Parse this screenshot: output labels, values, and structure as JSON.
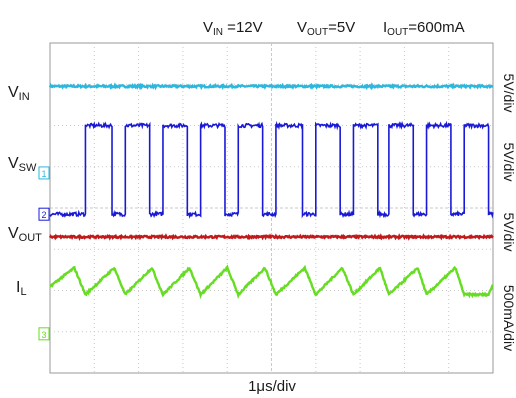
{
  "chart_data": {
    "type": "line",
    "header": {
      "vin": {
        "main": "V",
        "sub": "IN",
        "rest": " =12V"
      },
      "vout": {
        "main": "V",
        "sub": "OUT",
        "rest": "=5V"
      },
      "iout": {
        "main": "I",
        "sub": "OUT",
        "rest": "=600mA"
      }
    },
    "xlabel": "1μs/div",
    "xlim": [
      0,
      10
    ],
    "grid": true,
    "series": [
      {
        "name_main": "V",
        "name_sub": "IN",
        "scale": "5V/div",
        "color": "#2ab7e0",
        "shape": "dc",
        "level_div": 6.95
      },
      {
        "name_main": "V",
        "name_sub": "SW",
        "scale": "5V/div",
        "color": "#1a1ad6",
        "shape": "square",
        "high_div": 6.0,
        "low_div": 3.85,
        "rising_edges_div": [
          0.8,
          1.7,
          2.55,
          3.4,
          4.25,
          5.1,
          6.0,
          6.85,
          7.65,
          8.5,
          9.35
        ],
        "falling_edges_div": [
          1.4,
          2.25,
          3.1,
          3.95,
          4.8,
          5.7,
          6.55,
          7.4,
          8.2,
          9.05,
          9.9
        ]
      },
      {
        "name_main": "V",
        "name_sub": "OUT",
        "scale": "5V/div",
        "color": "#c01a1a",
        "shape": "dc",
        "level_div": 3.3
      },
      {
        "name_main": "I",
        "name_sub": "L",
        "scale": "500mA/div",
        "color": "#66dd22",
        "shape": "triangle",
        "min_div": 1.9,
        "max_div": 2.55,
        "peaks_div": [
          0.55,
          1.45,
          2.3,
          3.15,
          4.0,
          4.85,
          5.75,
          6.6,
          7.45,
          8.3,
          9.15
        ],
        "valleys_div": [
          0.8,
          1.7,
          2.55,
          3.4,
          4.25,
          5.1,
          6.0,
          6.85,
          7.65,
          8.5,
          9.35,
          9.9
        ]
      }
    ],
    "markers": [
      {
        "text": "1",
        "color": "#2ab7e0",
        "level_div": 4.85
      },
      {
        "text": "2",
        "color": "#1a1ad6",
        "level_div": 3.85
      },
      {
        "text": "3",
        "color": "#66dd22",
        "level_div": 0.95
      }
    ]
  }
}
